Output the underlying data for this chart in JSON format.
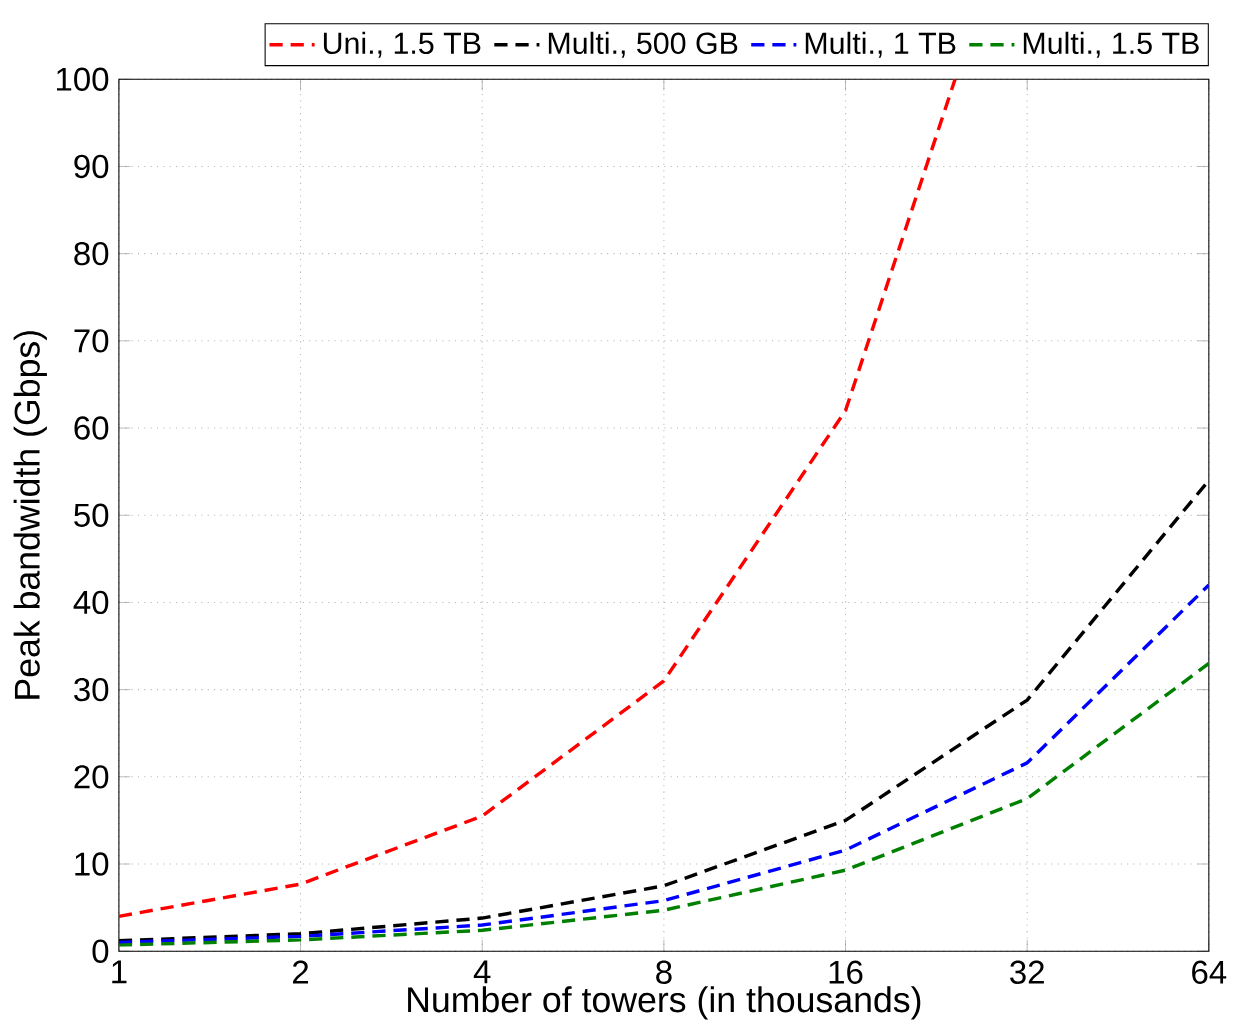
{
  "chart_data": {
    "type": "line",
    "xlabel": "Number of towers (in thousands)",
    "ylabel": "Peak bandwidth (Gbps)",
    "x": [
      1,
      2,
      4,
      8,
      16,
      32,
      64
    ],
    "log": "x",
    "xlim": [
      1,
      64
    ],
    "xticks": [
      1,
      2,
      4,
      8,
      16,
      32,
      64
    ],
    "ylim": [
      0,
      100
    ],
    "yticks": [
      0,
      10,
      20,
      30,
      40,
      50,
      60,
      70,
      80,
      90,
      100
    ],
    "grid": true,
    "legend": "top",
    "line_style": "dashed",
    "marker": "none",
    "series": [
      {
        "name": "Uni., 1.5 TB",
        "color": "#ff0000",
        "x": [
          1,
          2,
          4,
          8,
          16,
          24.3
        ],
        "values": [
          4.0,
          7.7,
          15.5,
          31,
          62,
          100
        ]
      },
      {
        "name": "Multi., 500 GB",
        "color": "#000000",
        "values": [
          1.2,
          2.0,
          3.8,
          7.5,
          15,
          28.8,
          54
        ]
      },
      {
        "name": "Multi., 1 TB",
        "color": "#0000ff",
        "values": [
          1.0,
          1.7,
          3.0,
          5.8,
          11.6,
          21.6,
          42
        ]
      },
      {
        "name": "Multi., 1.5 TB",
        "color": "#008000",
        "values": [
          0.7,
          1.3,
          2.4,
          4.7,
          9.3,
          17.5,
          33
        ]
      }
    ]
  }
}
